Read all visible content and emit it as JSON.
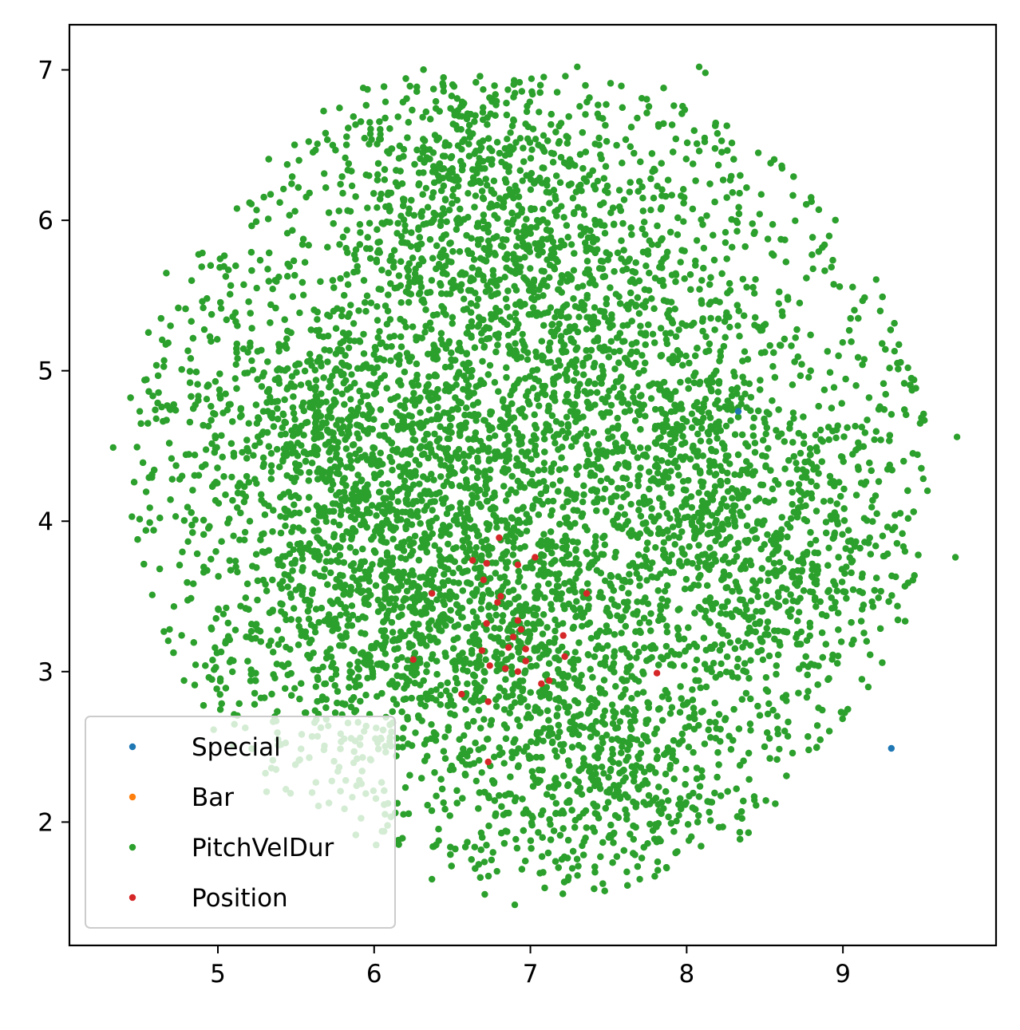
{
  "chart_data": {
    "type": "scatter",
    "title": "",
    "xlabel": "",
    "ylabel": "",
    "xlim": [
      4.05,
      9.98
    ],
    "ylim": [
      1.18,
      7.3
    ],
    "xticks": [
      5,
      6,
      7,
      8,
      9
    ],
    "yticks": [
      2,
      3,
      4,
      5,
      6,
      7
    ],
    "xtick_labels": [
      "5",
      "6",
      "7",
      "8",
      "9"
    ],
    "ytick_labels": [
      "2",
      "3",
      "4",
      "5",
      "6",
      "7"
    ],
    "grid": false,
    "legend_position": "lower-left",
    "series": [
      {
        "name": "Special",
        "color": "#1f77b4",
        "points": [
          [
            9.31,
            2.49
          ],
          [
            8.33,
            4.73
          ]
        ]
      },
      {
        "name": "Bar",
        "color": "#ff7f0e",
        "points": []
      },
      {
        "name": "PitchVelDur",
        "color": "#2ca02c",
        "points": [],
        "cloud": {
          "approx_count": 12000,
          "center": [
            7.0,
            4.3
          ],
          "clusters": [
            [
              5.6,
              4.6
            ],
            [
              6.4,
              4.4
            ],
            [
              7.3,
              5.4
            ],
            [
              7.8,
              4.4
            ],
            [
              6.0,
              3.4
            ],
            [
              6.9,
              3.3
            ],
            [
              8.5,
              3.7
            ],
            [
              7.4,
              2.3
            ],
            [
              6.6,
              6.2
            ]
          ],
          "x_range": [
            4.3,
            9.75
          ],
          "y_range": [
            1.45,
            7.05
          ],
          "outliers": [
            [
              4.33,
              4.49
            ],
            [
              4.45,
              4.03
            ],
            [
              4.5,
              4.73
            ],
            [
              5.93,
              6.88
            ],
            [
              6.9,
              1.45
            ],
            [
              8.08,
              7.02
            ],
            [
              8.12,
              6.98
            ],
            [
              7.3,
              7.02
            ],
            [
              9.72,
              3.76
            ],
            [
              9.73,
              4.56
            ],
            [
              7.7,
              1.62
            ],
            [
              6.37,
              1.62
            ]
          ]
        }
      },
      {
        "name": "Position",
        "color": "#d62728",
        "points": [
          [
            6.8,
            3.89
          ],
          [
            6.63,
            3.74
          ],
          [
            6.72,
            3.72
          ],
          [
            6.92,
            3.71
          ],
          [
            7.03,
            3.76
          ],
          [
            6.7,
            3.61
          ],
          [
            6.81,
            3.5
          ],
          [
            6.79,
            3.46
          ],
          [
            6.37,
            3.52
          ],
          [
            7.36,
            3.52
          ],
          [
            6.72,
            3.32
          ],
          [
            6.92,
            3.34
          ],
          [
            6.94,
            3.28
          ],
          [
            6.89,
            3.23
          ],
          [
            6.86,
            3.16
          ],
          [
            6.97,
            3.15
          ],
          [
            7.21,
            3.24
          ],
          [
            6.69,
            3.14
          ],
          [
            6.25,
            3.08
          ],
          [
            6.97,
            3.07
          ],
          [
            7.22,
            3.1
          ],
          [
            6.74,
            3.04
          ],
          [
            6.84,
            3.02
          ],
          [
            6.92,
            3.0
          ],
          [
            7.81,
            2.99
          ],
          [
            7.07,
            2.92
          ],
          [
            7.12,
            2.94
          ],
          [
            6.56,
            2.85
          ],
          [
            6.73,
            2.8
          ],
          [
            6.73,
            2.4
          ]
        ]
      }
    ]
  }
}
